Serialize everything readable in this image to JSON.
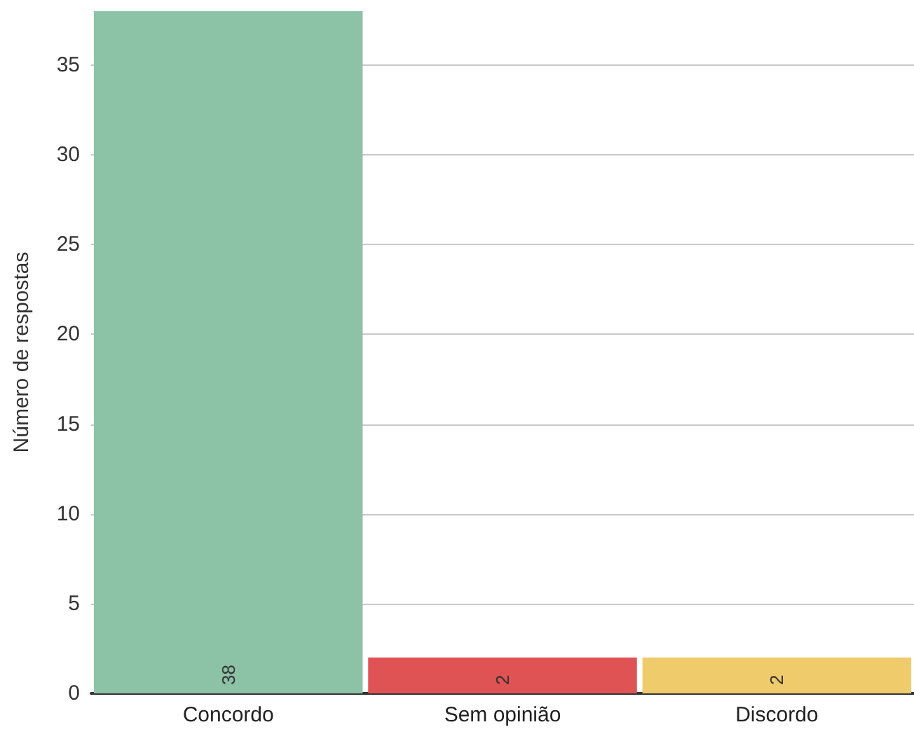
{
  "chart_data": {
    "type": "bar",
    "ylabel": "Número de respostas",
    "categories": [
      "Concordo",
      "Sem opinião",
      "Discordo"
    ],
    "values": [
      38,
      2,
      2
    ],
    "colors": [
      "#8cc2a6",
      "#e05355",
      "#f0cb6b"
    ],
    "ylim": [
      0,
      38
    ],
    "yticks": [
      0,
      5,
      10,
      15,
      20,
      25,
      30,
      35
    ],
    "grid": "y",
    "data_labels": true
  }
}
